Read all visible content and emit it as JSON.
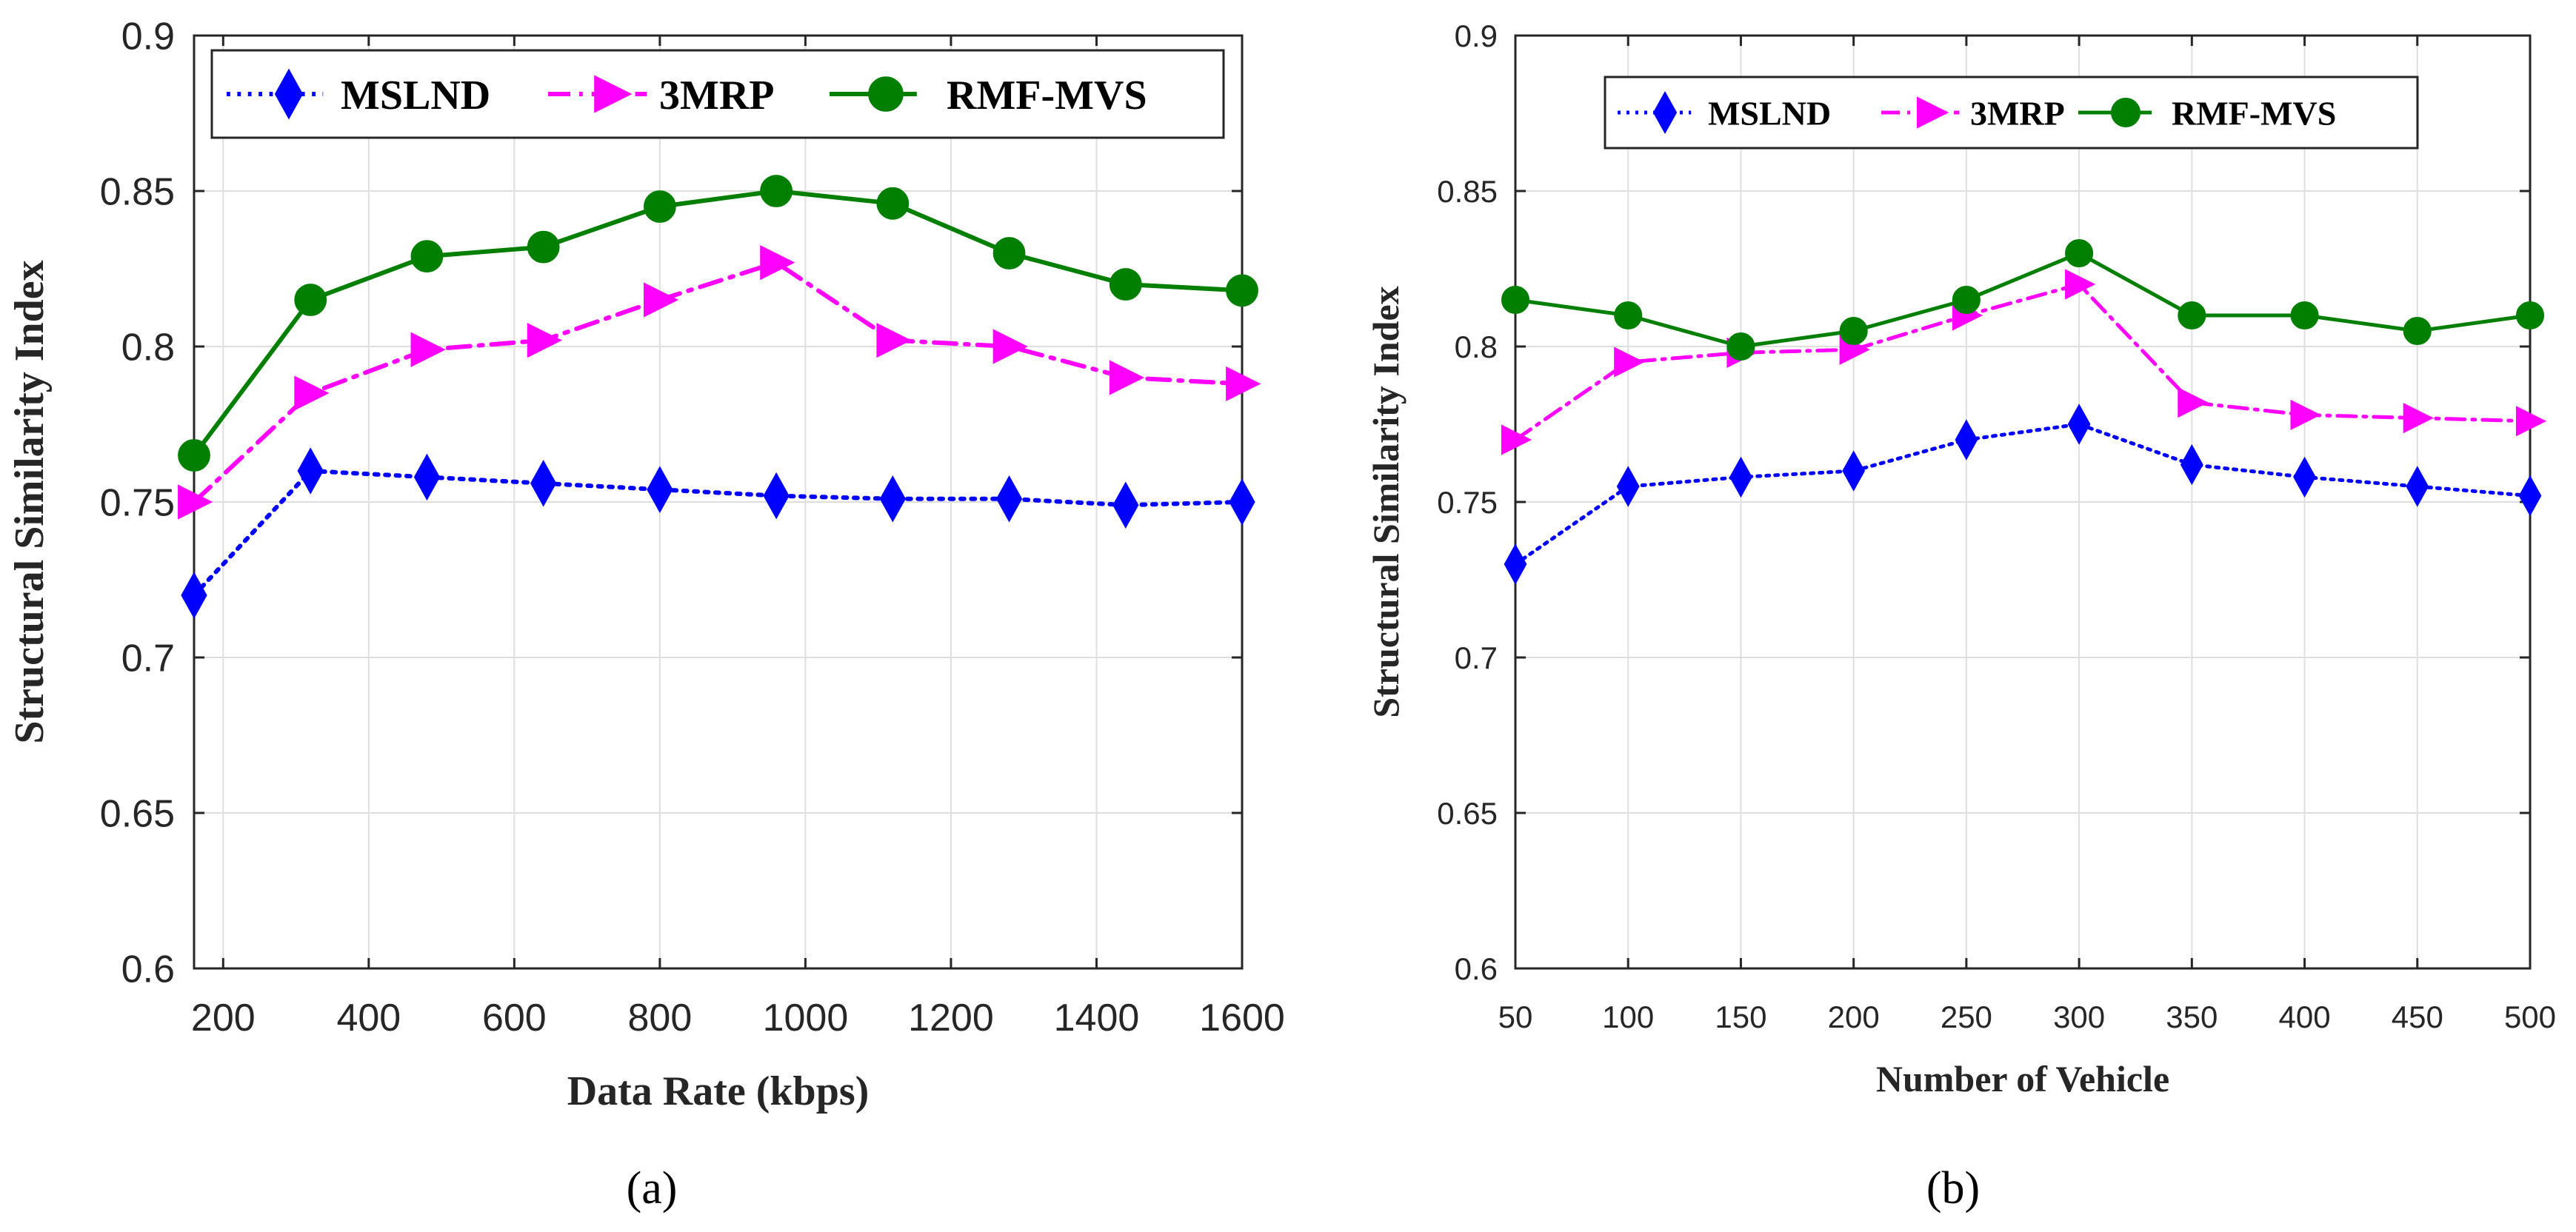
{
  "chart_data": [
    {
      "type": "line",
      "panel_label": "a",
      "xlabel": "Data Rate (kbps)",
      "ylabel": "Structural Similarity Index",
      "xlim": [
        160,
        1600
      ],
      "ylim": [
        0.6,
        0.9
      ],
      "xticks": [
        200,
        400,
        600,
        800,
        1000,
        1200,
        1400,
        1600
      ],
      "yticks": [
        0.6,
        0.65,
        0.7,
        0.75,
        0.8,
        0.85,
        0.9
      ],
      "ytick_labels": [
        "0.6",
        "0.65",
        "0.7",
        "0.75",
        "0.8",
        "0.85",
        "0.9"
      ],
      "grid": true,
      "legend_position": "top",
      "x": [
        160,
        320,
        480,
        640,
        800,
        960,
        1120,
        1280,
        1440,
        1600
      ],
      "series": [
        {
          "name": "MSLND",
          "color": "#0000ff",
          "marker": "diamond",
          "linestyle": "dotted",
          "values": [
            0.72,
            0.76,
            0.758,
            0.756,
            0.754,
            0.752,
            0.751,
            0.751,
            0.749,
            0.75
          ]
        },
        {
          "name": "3MRP",
          "color": "#ff00ff",
          "marker": "triangle-right",
          "linestyle": "dashdot",
          "values": [
            0.75,
            0.785,
            0.799,
            0.802,
            0.815,
            0.827,
            0.802,
            0.8,
            0.79,
            0.788
          ]
        },
        {
          "name": "RMF-MVS",
          "color": "#007f00",
          "marker": "circle",
          "linestyle": "solid",
          "values": [
            0.765,
            0.815,
            0.829,
            0.832,
            0.845,
            0.85,
            0.846,
            0.83,
            0.82,
            0.818
          ]
        }
      ]
    },
    {
      "type": "line",
      "panel_label": "b",
      "xlabel": "Number of Vehicle",
      "ylabel": "Structural Similarity Index",
      "xlim": [
        50,
        500
      ],
      "ylim": [
        0.6,
        0.9
      ],
      "xticks": [
        50,
        100,
        150,
        200,
        250,
        300,
        350,
        400,
        450,
        500
      ],
      "yticks": [
        0.6,
        0.65,
        0.7,
        0.75,
        0.8,
        0.85,
        0.9
      ],
      "ytick_labels": [
        "0.6",
        "0.65",
        "0.7",
        "0.75",
        "0.8",
        "0.85",
        "0.9"
      ],
      "grid": true,
      "legend_position": "top",
      "x": [
        50,
        100,
        150,
        200,
        250,
        300,
        350,
        400,
        450,
        500
      ],
      "series": [
        {
          "name": "MSLND",
          "color": "#0000ff",
          "marker": "diamond",
          "linestyle": "dotted",
          "values": [
            0.73,
            0.755,
            0.758,
            0.76,
            0.77,
            0.775,
            0.762,
            0.758,
            0.755,
            0.752
          ]
        },
        {
          "name": "3MRP",
          "color": "#ff00ff",
          "marker": "triangle-right",
          "linestyle": "dashdot",
          "values": [
            0.77,
            0.795,
            0.798,
            0.799,
            0.81,
            0.82,
            0.782,
            0.778,
            0.777,
            0.776
          ]
        },
        {
          "name": "RMF-MVS",
          "color": "#007f00",
          "marker": "circle",
          "linestyle": "solid",
          "values": [
            0.815,
            0.81,
            0.8,
            0.805,
            0.815,
            0.83,
            0.81,
            0.81,
            0.805,
            0.81
          ]
        }
      ]
    }
  ],
  "captions": [
    "(a)",
    "(b)"
  ]
}
